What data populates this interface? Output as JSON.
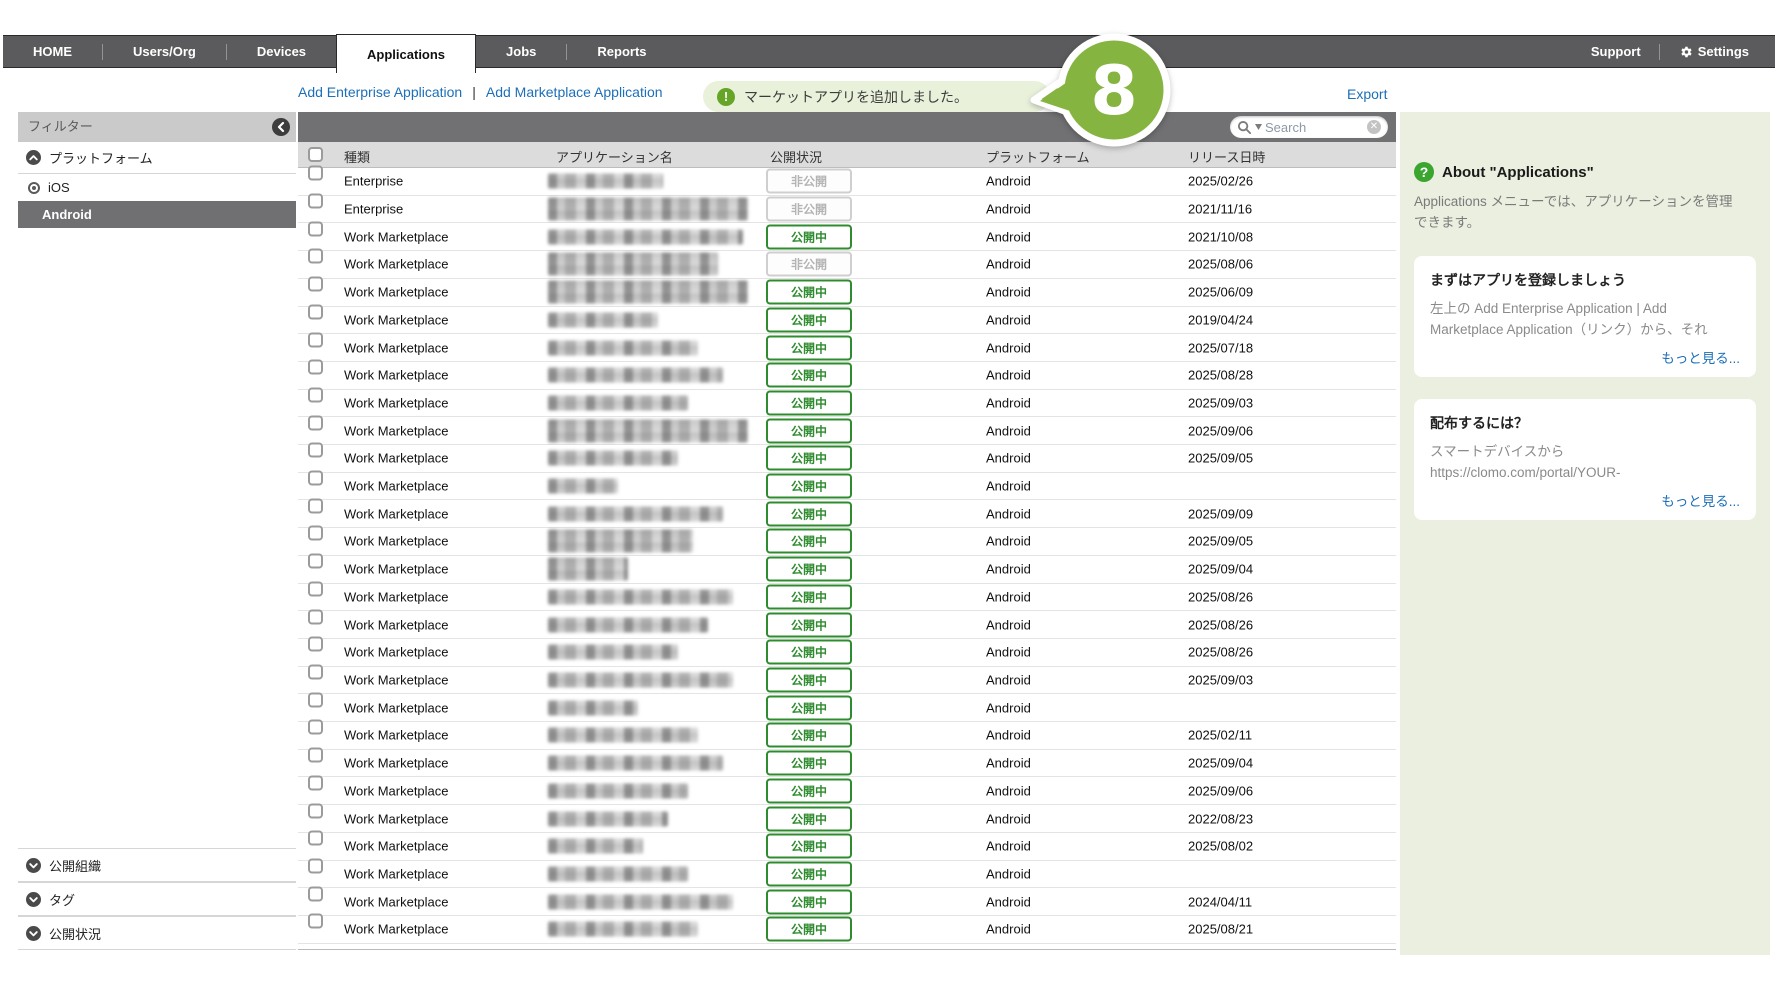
{
  "nav": {
    "tabs": [
      "HOME",
      "Users/Org",
      "Devices",
      "Applications",
      "Jobs",
      "Reports"
    ],
    "support": "Support",
    "settings": "Settings"
  },
  "actions": {
    "add_enterprise": "Add Enterprise Application",
    "divider": "|",
    "add_marketplace": "Add Marketplace Application",
    "export": "Export"
  },
  "toast": {
    "message": "マーケットアプリを追加しました。",
    "icon": "!"
  },
  "annotation": {
    "number": "8",
    "color": "#86b440"
  },
  "search": {
    "placeholder": "Search"
  },
  "sidebar": {
    "title": "フィルター",
    "platform_section": "プラットフォーム",
    "items": [
      {
        "label": "iOS"
      },
      {
        "label": "Android",
        "selected": true
      }
    ],
    "org_section": "公開組織",
    "tag_section": "タグ",
    "status_section": "公開状況"
  },
  "table": {
    "columns": [
      "種類",
      "アプリケーション名",
      "公開状況",
      "プラットフォーム",
      "リリース日時"
    ],
    "rows": [
      {
        "type": "Enterprise",
        "name_w": 115,
        "status": "非公開",
        "kind": "private",
        "platform": "Android",
        "date": "2025/02/26"
      },
      {
        "type": "Enterprise",
        "name_w": 200,
        "tall": true,
        "status": "非公開",
        "kind": "private",
        "platform": "Android",
        "date": "2021/11/16"
      },
      {
        "type": "Work Marketplace",
        "name_w": 195,
        "status": "公開中",
        "kind": "public",
        "platform": "Android",
        "date": "2021/10/08"
      },
      {
        "type": "Work Marketplace",
        "name_w": 170,
        "tall": true,
        "status": "非公開",
        "kind": "private",
        "platform": "Android",
        "date": "2025/08/06"
      },
      {
        "type": "Work Marketplace",
        "name_w": 200,
        "tall": true,
        "status": "公開中",
        "kind": "public",
        "platform": "Android",
        "date": "2025/06/09"
      },
      {
        "type": "Work Marketplace",
        "name_w": 110,
        "status": "公開中",
        "kind": "public",
        "platform": "Android",
        "date": "2019/04/24"
      },
      {
        "type": "Work Marketplace",
        "name_w": 150,
        "status": "公開中",
        "kind": "public",
        "platform": "Android",
        "date": "2025/07/18"
      },
      {
        "type": "Work Marketplace",
        "name_w": 175,
        "status": "公開中",
        "kind": "public",
        "platform": "Android",
        "date": "2025/08/28"
      },
      {
        "type": "Work Marketplace",
        "name_w": 140,
        "status": "公開中",
        "kind": "public",
        "platform": "Android",
        "date": "2025/09/03"
      },
      {
        "type": "Work Marketplace",
        "name_w": 200,
        "tall": true,
        "status": "公開中",
        "kind": "public",
        "platform": "Android",
        "date": "2025/09/06"
      },
      {
        "type": "Work Marketplace",
        "name_w": 130,
        "status": "公開中",
        "kind": "public",
        "platform": "Android",
        "date": "2025/09/05"
      },
      {
        "type": "Work Marketplace",
        "name_w": 70,
        "status": "公開中",
        "kind": "public",
        "platform": "Android",
        "date": ""
      },
      {
        "type": "Work Marketplace",
        "name_w": 175,
        "status": "公開中",
        "kind": "public",
        "platform": "Android",
        "date": "2025/09/09"
      },
      {
        "type": "Work Marketplace",
        "name_w": 145,
        "tall": true,
        "status": "公開中",
        "kind": "public",
        "platform": "Android",
        "date": "2025/09/05"
      },
      {
        "type": "Work Marketplace",
        "name_w": 80,
        "tall": true,
        "status": "公開中",
        "kind": "public",
        "platform": "Android",
        "date": "2025/09/04"
      },
      {
        "type": "Work Marketplace",
        "name_w": 185,
        "status": "公開中",
        "kind": "public",
        "platform": "Android",
        "date": "2025/08/26"
      },
      {
        "type": "Work Marketplace",
        "name_w": 160,
        "status": "公開中",
        "kind": "public",
        "platform": "Android",
        "date": "2025/08/26"
      },
      {
        "type": "Work Marketplace",
        "name_w": 130,
        "status": "公開中",
        "kind": "public",
        "platform": "Android",
        "date": "2025/08/26"
      },
      {
        "type": "Work Marketplace",
        "name_w": 185,
        "status": "公開中",
        "kind": "public",
        "platform": "Android",
        "date": "2025/09/03"
      },
      {
        "type": "Work Marketplace",
        "name_w": 90,
        "status": "公開中",
        "kind": "public",
        "platform": "Android",
        "date": ""
      },
      {
        "type": "Work Marketplace",
        "name_w": 150,
        "status": "公開中",
        "kind": "public",
        "platform": "Android",
        "date": "2025/02/11"
      },
      {
        "type": "Work Marketplace",
        "name_w": 175,
        "status": "公開中",
        "kind": "public",
        "platform": "Android",
        "date": "2025/09/04"
      },
      {
        "type": "Work Marketplace",
        "name_w": 140,
        "status": "公開中",
        "kind": "public",
        "platform": "Android",
        "date": "2025/09/06"
      },
      {
        "type": "Work Marketplace",
        "name_w": 120,
        "status": "公開中",
        "kind": "public",
        "platform": "Android",
        "date": "2022/08/23"
      },
      {
        "type": "Work Marketplace",
        "name_w": 95,
        "status": "公開中",
        "kind": "public",
        "platform": "Android",
        "date": "2025/08/02"
      },
      {
        "type": "Work Marketplace",
        "name_w": 140,
        "status": "公開中",
        "kind": "public",
        "platform": "Android",
        "date": ""
      },
      {
        "type": "Work Marketplace",
        "name_w": 185,
        "status": "公開中",
        "kind": "public",
        "platform": "Android",
        "date": "2024/04/11"
      },
      {
        "type": "Work Marketplace",
        "name_w": 150,
        "status": "公開中",
        "kind": "public",
        "platform": "Android",
        "date": "2025/08/21"
      }
    ]
  },
  "help": {
    "title": "About \"Applications\"",
    "q_icon": "?",
    "desc": "Applications メニューでは、アプリケーションを管理できます。",
    "card1": {
      "title": "まずはアプリを登録しましょう",
      "body": "左上の Add Enterprise Application | Add Marketplace Application（リンク）から、それ",
      "more": "もっと見る..."
    },
    "card2": {
      "title": "配布するには？",
      "line1": "スマートデバイスから",
      "line2": "https://clomo.com/portal/YOUR-",
      "more": "もっと見る..."
    }
  }
}
